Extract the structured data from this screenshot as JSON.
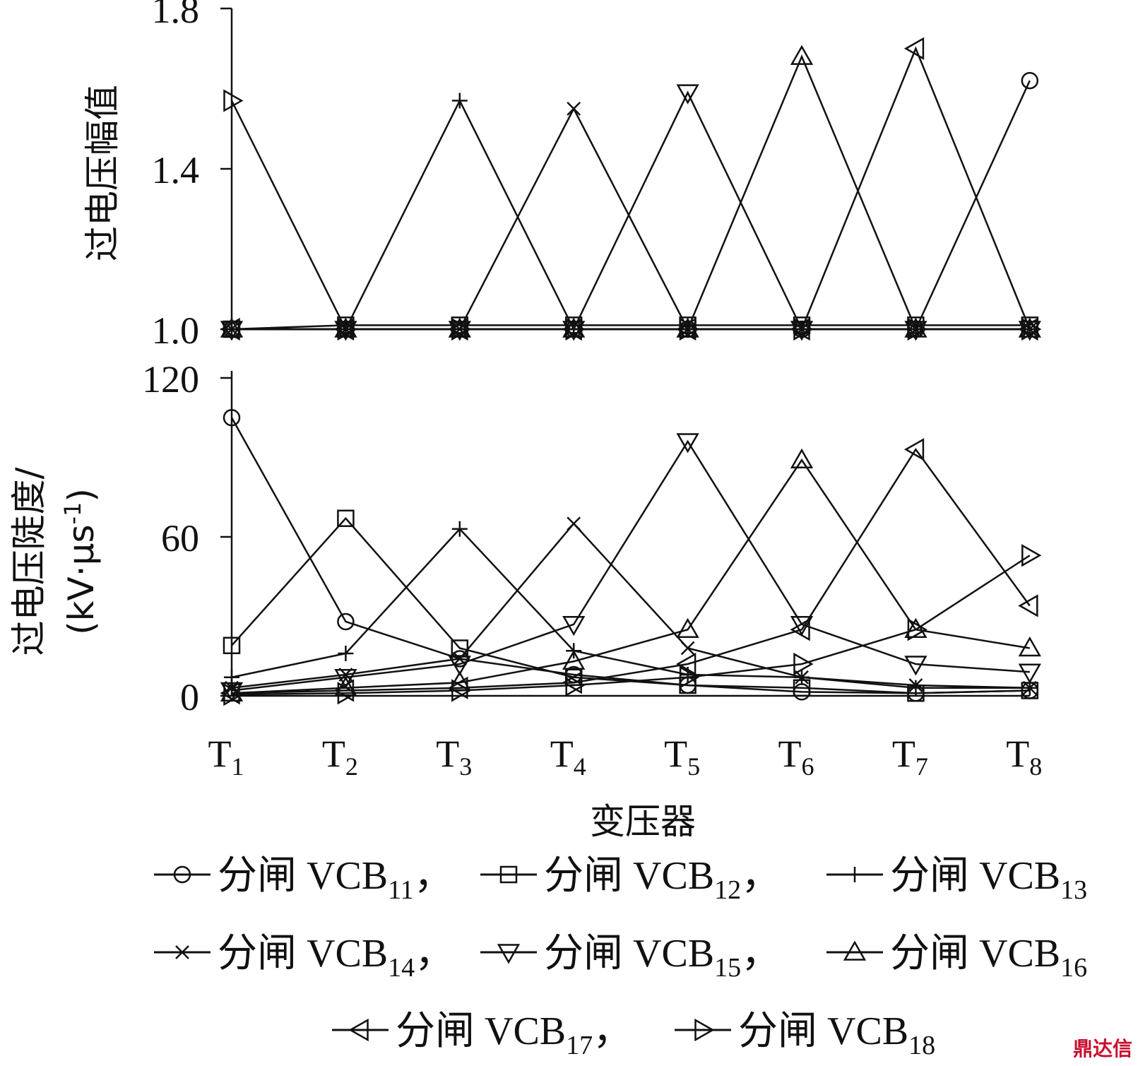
{
  "chart_data": [
    {
      "type": "line",
      "ylabel": "过电压幅值",
      "ylim": [
        1.0,
        1.8
      ],
      "yticks": [
        "1.0",
        "1.4",
        "1.8"
      ],
      "categories": [
        "T1",
        "T2",
        "T3",
        "T4",
        "T5",
        "T6",
        "T7",
        "T8"
      ],
      "series": [
        {
          "name": "分闸 VCB11",
          "marker": "circle",
          "values": [
            1.0,
            1.0,
            1.0,
            1.0,
            1.0,
            1.0,
            1.0,
            1.62
          ]
        },
        {
          "name": "分闸 VCB12",
          "marker": "square",
          "values": [
            1.0,
            1.01,
            1.01,
            1.01,
            1.01,
            1.01,
            1.01,
            1.01
          ]
        },
        {
          "name": "分闸 VCB13",
          "marker": "plus",
          "values": [
            1.0,
            1.0,
            1.57,
            1.0,
            1.0,
            1.0,
            1.0,
            1.0
          ]
        },
        {
          "name": "分闸 VCB14",
          "marker": "x",
          "values": [
            1.0,
            1.0,
            1.0,
            1.55,
            1.0,
            1.0,
            1.0,
            1.0
          ]
        },
        {
          "name": "分闸 VCB15",
          "marker": "triangle-down",
          "values": [
            1.0,
            1.0,
            1.0,
            1.0,
            1.59,
            1.0,
            1.0,
            1.0
          ]
        },
        {
          "name": "分闸 VCB16",
          "marker": "triangle-up",
          "values": [
            1.0,
            1.0,
            1.0,
            1.0,
            1.0,
            1.68,
            1.0,
            1.0
          ]
        },
        {
          "name": "分闸 VCB17",
          "marker": "triangle-left",
          "values": [
            1.0,
            1.0,
            1.0,
            1.0,
            1.0,
            1.0,
            1.7,
            1.0
          ]
        },
        {
          "name": "分闸 VCB18",
          "marker": "triangle-right",
          "values": [
            1.57,
            1.0,
            1.0,
            1.0,
            1.0,
            1.0,
            1.0,
            1.0
          ]
        }
      ]
    },
    {
      "type": "line",
      "ylabel_line1": "过电压陡度/",
      "ylabel_line2": "(kV·μs",
      "ylabel_sup": "-1",
      "ylabel_close": ")",
      "ylim": [
        0,
        120
      ],
      "yticks": [
        "0",
        "60",
        "120"
      ],
      "xlabel": "变压器",
      "categories": [
        "T1",
        "T2",
        "T3",
        "T4",
        "T5",
        "T6",
        "T7",
        "T8"
      ],
      "series": [
        {
          "name": "分闸 VCB11",
          "marker": "circle",
          "values": [
            105,
            28,
            14,
            8,
            4,
            1.5,
            1,
            2
          ]
        },
        {
          "name": "分闸 VCB12",
          "marker": "square",
          "values": [
            19,
            67,
            18,
            7,
            4,
            3,
            1,
            2
          ]
        },
        {
          "name": "分闸 VCB13",
          "marker": "plus",
          "values": [
            7,
            16,
            63,
            17,
            8,
            7,
            3,
            3
          ]
        },
        {
          "name": "分闸 VCB14",
          "marker": "x",
          "values": [
            3,
            8,
            14,
            65,
            18,
            7,
            4,
            3
          ]
        },
        {
          "name": "分闸 VCB15",
          "marker": "triangle-down",
          "values": [
            2,
            7,
            12,
            27,
            96,
            27,
            12,
            9
          ]
        },
        {
          "name": "分闸 VCB16",
          "marker": "triangle-up",
          "values": [
            1,
            3,
            5,
            13,
            25,
            89,
            25,
            18
          ]
        },
        {
          "name": "分闸 VCB17",
          "marker": "triangle-left",
          "values": [
            1,
            2,
            3,
            5,
            12,
            25,
            93,
            34
          ]
        },
        {
          "name": "分闸 VCB18",
          "marker": "triangle-right",
          "values": [
            0.5,
            1,
            2,
            4,
            7,
            12,
            25,
            53
          ]
        }
      ]
    }
  ],
  "x_tick_labels": [
    {
      "main": "T",
      "sub": "1"
    },
    {
      "main": "T",
      "sub": "2"
    },
    {
      "main": "T",
      "sub": "3"
    },
    {
      "main": "T",
      "sub": "4"
    },
    {
      "main": "T",
      "sub": "5"
    },
    {
      "main": "T",
      "sub": "6"
    },
    {
      "main": "T",
      "sub": "7"
    },
    {
      "main": "T",
      "sub": "8"
    }
  ],
  "legend": [
    {
      "prefix": "分闸 VCB",
      "sub": "11",
      "suffix": "，",
      "marker": "circle"
    },
    {
      "prefix": "分闸 VCB",
      "sub": "12",
      "suffix": "，",
      "marker": "square"
    },
    {
      "prefix": "分闸 VCB",
      "sub": "13",
      "suffix": "",
      "marker": "plus"
    },
    {
      "prefix": "分闸 VCB",
      "sub": "14",
      "suffix": "，",
      "marker": "x"
    },
    {
      "prefix": "分闸 VCB",
      "sub": "15",
      "suffix": "，",
      "marker": "triangle-down"
    },
    {
      "prefix": "分闸 VCB",
      "sub": "16",
      "suffix": "",
      "marker": "triangle-up"
    },
    {
      "prefix": "分闸 VCB",
      "sub": "17",
      "suffix": "，",
      "marker": "triangle-left"
    },
    {
      "prefix": "分闸 VCB",
      "sub": "18",
      "suffix": "",
      "marker": "triangle-right"
    }
  ],
  "watermark": "鼎达信",
  "colors": {
    "ink": "#111111",
    "background": "#ffffff",
    "watermark": "#c8102e"
  }
}
